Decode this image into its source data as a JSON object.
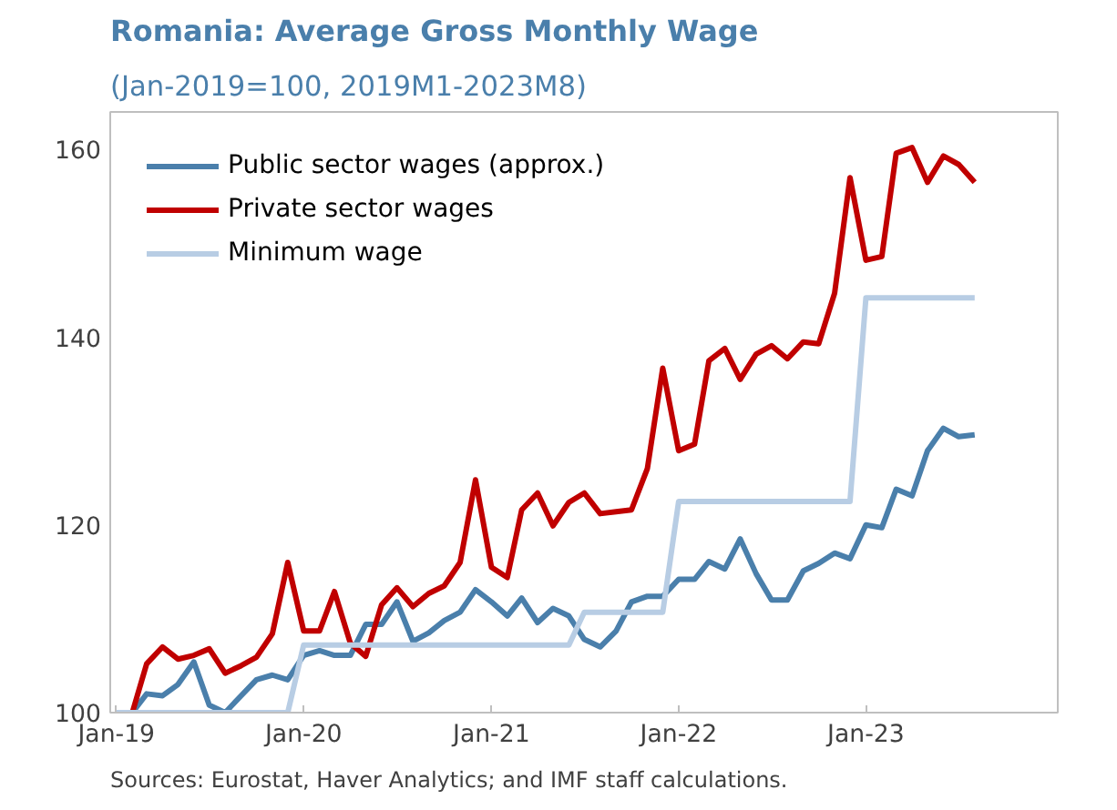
{
  "chart_data": {
    "type": "line",
    "title": "Romania: Average Gross Monthly Wage",
    "subtitle": "(Jan-2019=100, 2019M1-2023M8)",
    "x": [
      "2019-01",
      "2019-02",
      "2019-03",
      "2019-04",
      "2019-05",
      "2019-06",
      "2019-07",
      "2019-08",
      "2019-09",
      "2019-10",
      "2019-11",
      "2019-12",
      "2020-01",
      "2020-02",
      "2020-03",
      "2020-04",
      "2020-05",
      "2020-06",
      "2020-07",
      "2020-08",
      "2020-09",
      "2020-10",
      "2020-11",
      "2020-12",
      "2021-01",
      "2021-02",
      "2021-03",
      "2021-04",
      "2021-05",
      "2021-06",
      "2021-07",
      "2021-08",
      "2021-09",
      "2021-10",
      "2021-11",
      "2021-12",
      "2022-01",
      "2022-02",
      "2022-03",
      "2022-04",
      "2022-05",
      "2022-06",
      "2022-07",
      "2022-08",
      "2022-09",
      "2022-10",
      "2022-11",
      "2022-12",
      "2023-01",
      "2023-02",
      "2023-03",
      "2023-04",
      "2023-05",
      "2023-06",
      "2023-07",
      "2023-08"
    ],
    "series": [
      {
        "name": "Public sector wages (approx.)",
        "color": "#4a7fab",
        "values": [
          100,
          100,
          102,
          101.8,
          103,
          105.4,
          100.8,
          100,
          101.8,
          103.5,
          104,
          103.5,
          106.1,
          106.6,
          106.1,
          106.1,
          109.4,
          109.4,
          111.8,
          107.6,
          108.5,
          109.8,
          110.7,
          113.1,
          111.8,
          110.3,
          112.2,
          109.6,
          111.1,
          110.3,
          107.8,
          107,
          108.7,
          111.8,
          112.4,
          112.4,
          114.2,
          114.2,
          116.1,
          115.3,
          118.5,
          114.8,
          112,
          112,
          115.1,
          115.9,
          117,
          116.4,
          120,
          119.7,
          123.8,
          123.1,
          127.9,
          130.3,
          129.4,
          129.6
        ]
      },
      {
        "name": "Private sector wages",
        "color": "#c00000",
        "values": [
          100,
          100,
          105.2,
          107,
          105.7,
          106.1,
          106.8,
          104.2,
          105,
          105.9,
          108.4,
          116,
          108.7,
          108.7,
          112.9,
          107.4,
          106,
          111.5,
          113.3,
          111.3,
          112.7,
          113.5,
          116,
          124.8,
          115.5,
          114.4,
          121.6,
          123.4,
          119.9,
          122.4,
          123.4,
          121.2,
          121.4,
          121.6,
          126,
          136.7,
          127.9,
          128.6,
          137.5,
          138.8,
          135.5,
          138.2,
          139.1,
          137.7,
          139.5,
          139.3,
          144.7,
          157,
          148.2,
          148.6,
          159.6,
          160.2,
          156.5,
          159.3,
          158.4,
          156.5
        ]
      },
      {
        "name": "Minimum wage",
        "color": "#b8cde4",
        "values": [
          100,
          100,
          100,
          100,
          100,
          100,
          100,
          100,
          100,
          100,
          100,
          100,
          107.2,
          107.2,
          107.2,
          107.2,
          107.2,
          107.2,
          107.2,
          107.2,
          107.2,
          107.2,
          107.2,
          107.2,
          107.2,
          107.2,
          107.2,
          107.2,
          107.2,
          107.2,
          110.7,
          110.7,
          110.7,
          110.7,
          110.7,
          110.7,
          122.5,
          122.5,
          122.5,
          122.5,
          122.5,
          122.5,
          122.5,
          122.5,
          122.5,
          122.5,
          122.5,
          122.5,
          144.2,
          144.2,
          144.2,
          144.2,
          144.2,
          144.2,
          144.2,
          144.2
        ]
      }
    ],
    "xlim": [
      "2018-12-20",
      "2024-01-10"
    ],
    "xticks": [
      {
        "value": "2019-01",
        "label": "Jan-19"
      },
      {
        "value": "2020-01",
        "label": "Jan-20"
      },
      {
        "value": "2021-01",
        "label": "Jan-21"
      },
      {
        "value": "2022-01",
        "label": "Jan-22"
      },
      {
        "value": "2023-01",
        "label": "Jan-23"
      }
    ],
    "ylim": [
      100,
      164
    ],
    "yticks": [
      100,
      120,
      140,
      160
    ],
    "grid": false,
    "legend": "top left",
    "line_style": "solid",
    "marker": "none",
    "annotations": [
      "Sources: Eurostat, Haver Analytics; and IMF staff calculations."
    ]
  }
}
